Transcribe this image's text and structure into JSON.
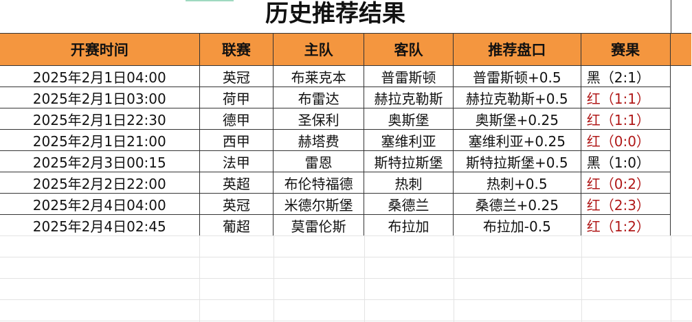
{
  "title": "历史推荐结果",
  "headers": [
    "开赛时间",
    "联赛",
    "主队",
    "客队",
    "推荐盘口",
    "赛果"
  ],
  "rows": [
    {
      "time": "2025年2月1日04:00",
      "league": "英冠",
      "home": "布莱克本",
      "away": "普雷斯顿",
      "pick": "普雷斯顿+0.5",
      "result": "黑（2:1）",
      "status": "black"
    },
    {
      "time": "2025年2月1日03:00",
      "league": "荷甲",
      "home": "布雷达",
      "away": "赫拉克勒斯",
      "pick": "赫拉克勒斯+0.5",
      "result": "红（1:1）",
      "status": "red"
    },
    {
      "time": "2025年2月1日22:30",
      "league": "德甲",
      "home": "圣保利",
      "away": "奥斯堡",
      "pick": "奥斯堡+0.25",
      "result": "红（1:1）",
      "status": "red"
    },
    {
      "time": "2025年2月1日21:00",
      "league": "西甲",
      "home": "赫塔费",
      "away": "塞维利亚",
      "pick": "塞维利亚+0.25",
      "result": "红（0:0）",
      "status": "red"
    },
    {
      "time": "2025年2月3日00:15",
      "league": "法甲",
      "home": "雷恩",
      "away": "斯特拉斯堡",
      "pick": "斯特拉斯堡+0.5",
      "result": "黑（1:0）",
      "status": "black"
    },
    {
      "time": "2025年2月2日22:00",
      "league": "英超",
      "home": "布伦特福德",
      "away": "热刺",
      "pick": "热刺+0.5",
      "result": "红（0:2）",
      "status": "red"
    },
    {
      "time": "2025年2月4日04:00",
      "league": "英冠",
      "home": "米德尔斯堡",
      "away": "桑德兰",
      "pick": "桑德兰+0.25",
      "result": "红（2:3）",
      "status": "red"
    },
    {
      "time": "2025年2月4日02:45",
      "league": "葡超",
      "home": "莫雷伦斯",
      "away": "布拉加",
      "pick": "布拉加-0.5",
      "result": "红（1:2）",
      "status": "red"
    }
  ],
  "colors": {
    "header_bg": "#F4963F",
    "red": "#b01818",
    "black": "#111111"
  }
}
